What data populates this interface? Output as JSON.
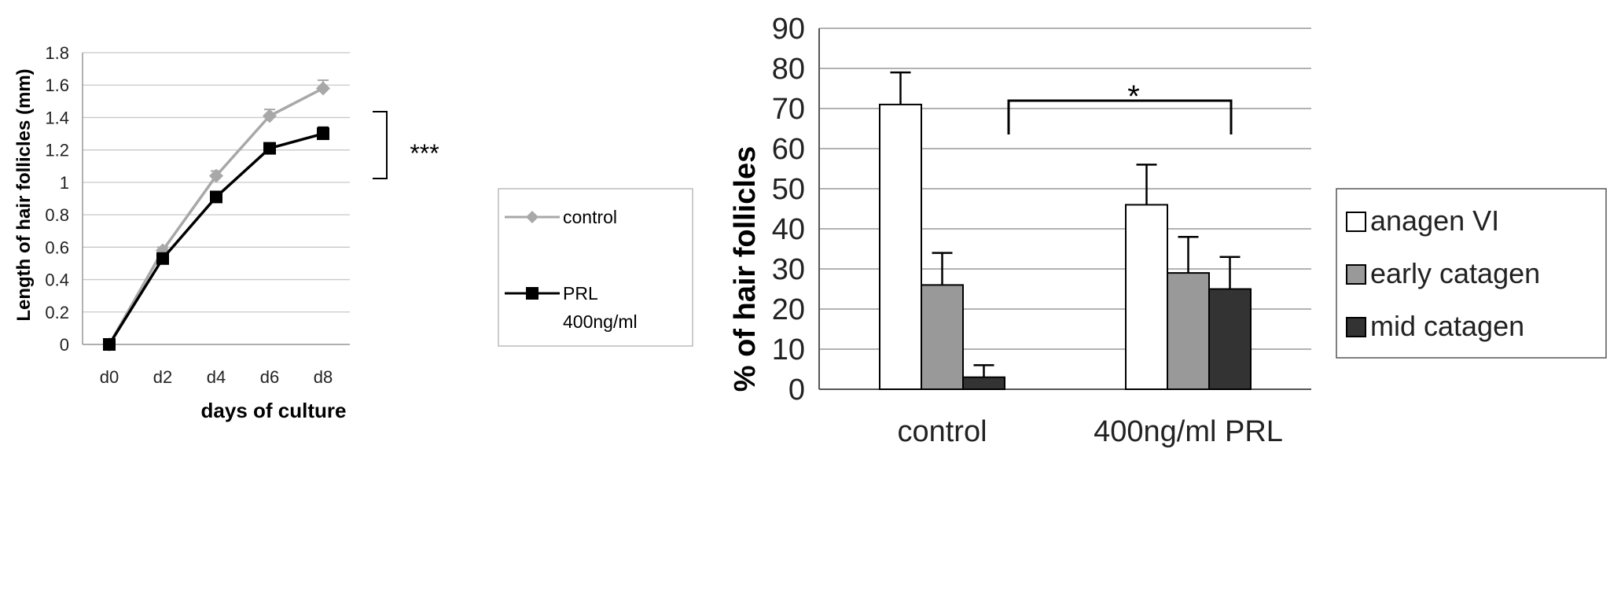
{
  "chart_data": [
    {
      "type": "line",
      "xlabel": "days of culture",
      "ylabel": "Length of hair follicles (mm)",
      "categories": [
        "d0",
        "d2",
        "d4",
        "d6",
        "d8"
      ],
      "ylim": [
        0,
        1.8
      ],
      "yticks": [
        "0",
        "0.2",
        "0.4",
        "0.6",
        "0.8",
        "1",
        "1.2",
        "1.4",
        "1.6",
        "1.8"
      ],
      "grid": true,
      "legend_position": "right",
      "significance": "***",
      "series": [
        {
          "name": "control",
          "marker": "diamond",
          "color": "#a8a8a8",
          "values": [
            0,
            0.58,
            1.04,
            1.41,
            1.58
          ],
          "errors": [
            0,
            0.02,
            0.03,
            0.04,
            0.05
          ]
        },
        {
          "name": "PRL 400ng/ml",
          "marker": "square",
          "color": "#000000",
          "values": [
            0,
            0.53,
            0.91,
            1.21,
            1.3
          ],
          "errors": [
            0,
            0.02,
            0.03,
            0.03,
            0.04
          ]
        }
      ]
    },
    {
      "type": "bar",
      "ylabel": "% of hair follicles",
      "categories": [
        "control",
        "400ng/ml PRL"
      ],
      "ylim": [
        0,
        90
      ],
      "yticks": [
        "0",
        "10",
        "20",
        "30",
        "40",
        "50",
        "60",
        "70",
        "80",
        "90"
      ],
      "grid": true,
      "legend_position": "right",
      "significance": "*",
      "series": [
        {
          "name": "anagen VI",
          "color": "#ffffff",
          "values": [
            71,
            46
          ],
          "errors": [
            8,
            10
          ]
        },
        {
          "name": "early catagen",
          "color": "#999999",
          "values": [
            26,
            29
          ],
          "errors": [
            8,
            9
          ]
        },
        {
          "name": "mid catagen",
          "color": "#333333",
          "values": [
            3,
            25
          ],
          "errors": [
            3,
            8
          ]
        }
      ]
    }
  ]
}
